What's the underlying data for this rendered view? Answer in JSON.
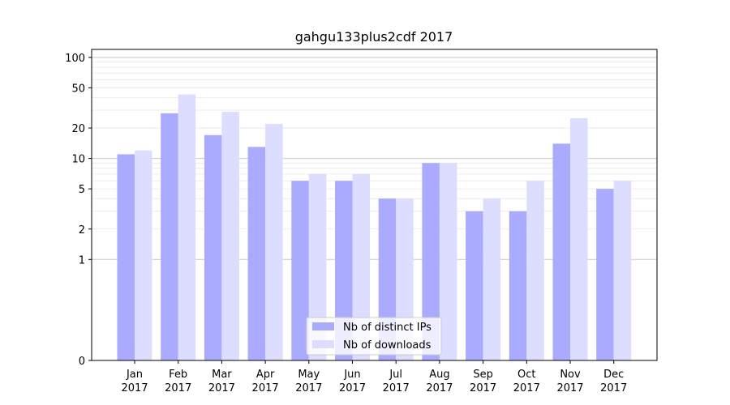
{
  "chart_data": {
    "type": "bar",
    "title": "gahgu133plus2cdf 2017",
    "xlabel": "",
    "ylabel": "",
    "y_scale": "symlog",
    "ylim": [
      0,
      120
    ],
    "y_ticks": [
      0,
      1,
      2,
      5,
      10,
      20,
      50,
      100
    ],
    "y_tick_labels": [
      "0",
      "1",
      "2",
      "5",
      "10",
      "20",
      "50",
      "100"
    ],
    "categories": [
      "Jan",
      "Feb",
      "Mar",
      "Apr",
      "May",
      "Jun",
      "Jul",
      "Aug",
      "Sep",
      "Oct",
      "Nov",
      "Dec"
    ],
    "category_sublabel": "2017",
    "grid": true,
    "legend_position": "bottom-center",
    "series": [
      {
        "name": "Nb of distinct IPs",
        "color": "#aaaaff",
        "values": [
          11,
          28,
          17,
          13,
          6,
          6,
          4,
          9,
          3,
          3,
          14,
          5
        ]
      },
      {
        "name": "Nb of downloads",
        "color": "#ddddff",
        "values": [
          12,
          43,
          29,
          22,
          7,
          7,
          4,
          9,
          4,
          6,
          25,
          6
        ]
      }
    ]
  }
}
